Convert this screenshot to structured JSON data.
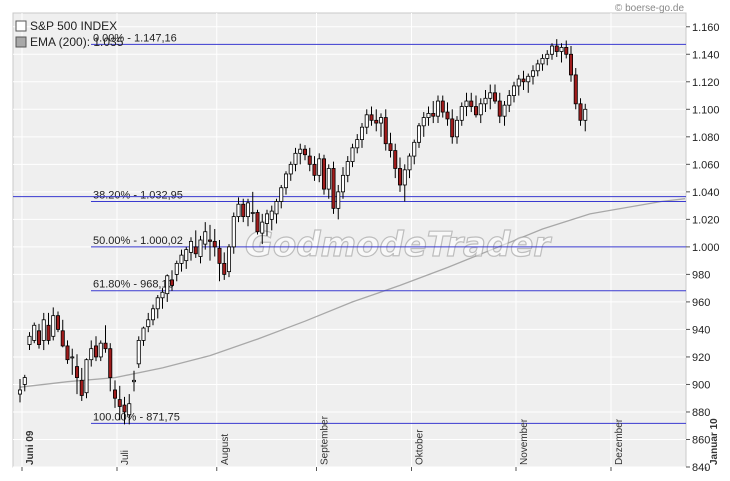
{
  "chart_data": {
    "type": "candlestick",
    "title": "",
    "ylim": [
      840,
      1170
    ],
    "y_ticks": [
      840,
      860,
      880,
      900,
      920,
      940,
      960,
      980,
      1000,
      1020,
      1040,
      1060,
      1080,
      1100,
      1120,
      1140,
      1160
    ],
    "y_tick_labels": [
      "840",
      "860",
      "880",
      "900",
      "920",
      "940",
      "960",
      "980",
      "1.000",
      "1.020",
      "1.040",
      "1.060",
      "1.080",
      "1.100",
      "1.120",
      "1.140",
      "1.160"
    ],
    "months": [
      {
        "label": "Juni 09",
        "bold": true,
        "index": 0
      },
      {
        "label": "Juli",
        "bold": false,
        "index": 20
      },
      {
        "label": "August",
        "bold": false,
        "index": 41
      },
      {
        "label": "September",
        "bold": false,
        "index": 62
      },
      {
        "label": "Oktober",
        "bold": false,
        "index": 82
      },
      {
        "label": "November",
        "bold": false,
        "index": 104
      },
      {
        "label": "Dezember",
        "bold": false,
        "index": 124
      },
      {
        "label": "Januar 10",
        "bold": true,
        "index": 144
      }
    ],
    "series": [
      {
        "name": "S&P 500 INDEX",
        "type": "candlestick"
      },
      {
        "name": "EMA (200): 1.035",
        "type": "line"
      }
    ],
    "fibonacci": [
      {
        "label": "0.00% - 1.147,16",
        "value": 1147.16
      },
      {
        "label": "38.20% - 1.032,95",
        "value": 1032.95
      },
      {
        "label": "50.00% - 1.000,02",
        "value": 1000.02
      },
      {
        "label": "61.80% - 968,13",
        "value": 968.13
      },
      {
        "label": "100.00% - 871,75",
        "value": 871.75
      }
    ],
    "extra_level": 1036.5,
    "ohlc": [
      [
        893,
        904,
        887,
        896
      ],
      [
        900,
        907,
        895,
        905
      ],
      [
        929,
        938,
        925,
        935
      ],
      [
        932,
        945,
        930,
        943
      ],
      [
        939,
        944,
        926,
        929
      ],
      [
        932,
        952,
        925,
        947
      ],
      [
        943,
        952,
        929,
        932
      ],
      [
        935,
        956,
        932,
        950
      ],
      [
        950,
        953,
        938,
        940
      ],
      [
        939,
        947,
        927,
        928
      ],
      [
        928,
        932,
        915,
        918
      ],
      [
        920,
        926,
        907,
        920
      ],
      [
        913,
        922,
        893,
        905
      ],
      [
        903,
        912,
        888,
        892
      ],
      [
        894,
        919,
        890,
        918
      ],
      [
        918,
        932,
        913,
        926
      ],
      [
        928,
        935,
        917,
        920
      ],
      [
        920,
        932,
        917,
        930
      ],
      [
        930,
        943,
        923,
        926
      ],
      [
        926,
        930,
        895,
        905
      ],
      [
        896,
        903,
        883,
        890
      ],
      [
        889,
        899,
        874,
        884
      ],
      [
        885,
        891,
        871,
        880
      ],
      [
        878,
        893,
        871,
        886
      ],
      [
        902,
        910,
        895,
        903
      ],
      [
        915,
        935,
        912,
        932
      ],
      [
        932,
        942,
        928,
        941
      ],
      [
        942,
        952,
        938,
        947
      ],
      [
        947,
        958,
        943,
        955
      ],
      [
        955,
        965,
        948,
        963
      ],
      [
        963,
        970,
        955,
        967
      ],
      [
        966,
        980,
        960,
        979
      ],
      [
        976,
        983,
        968,
        972
      ],
      [
        980,
        990,
        975,
        988
      ],
      [
        988,
        998,
        982,
        994
      ],
      [
        990,
        1000,
        984,
        998
      ],
      [
        996,
        1007,
        990,
        1004
      ],
      [
        1000,
        1012,
        992,
        995
      ],
      [
        993,
        1008,
        988,
        1005
      ],
      [
        1002,
        1018,
        998,
        1011
      ],
      [
        1005,
        1016,
        990,
        1004
      ],
      [
        1004,
        1013,
        993,
        1000
      ],
      [
        999,
        1005,
        975,
        988
      ],
      [
        988,
        996,
        976,
        980
      ],
      [
        982,
        1002,
        978,
        1000
      ],
      [
        1000,
        1025,
        995,
        1022
      ],
      [
        1022,
        1036,
        1018,
        1031
      ],
      [
        1031,
        1035,
        1018,
        1022
      ],
      [
        1022,
        1035,
        1015,
        1032
      ],
      [
        1025,
        1040,
        1018,
        1025
      ],
      [
        1025,
        1027,
        1009,
        1011
      ],
      [
        1010,
        1024,
        1002,
        1018
      ],
      [
        1017,
        1027,
        1008,
        1024
      ],
      [
        1020,
        1030,
        1012,
        1026
      ],
      [
        1024,
        1035,
        1017,
        1033
      ],
      [
        1033,
        1045,
        1028,
        1043
      ],
      [
        1043,
        1055,
        1038,
        1053
      ],
      [
        1053,
        1062,
        1048,
        1060
      ],
      [
        1060,
        1072,
        1055,
        1068
      ],
      [
        1068,
        1075,
        1060,
        1071
      ],
      [
        1071,
        1074,
        1063,
        1067
      ],
      [
        1066,
        1072,
        1055,
        1060
      ],
      [
        1060,
        1066,
        1048,
        1052
      ],
      [
        1052,
        1068,
        1047,
        1064
      ],
      [
        1064,
        1067,
        1038,
        1042
      ],
      [
        1042,
        1060,
        1035,
        1057
      ],
      [
        1057,
        1062,
        1024,
        1028
      ],
      [
        1028,
        1045,
        1020,
        1040
      ],
      [
        1040,
        1058,
        1035,
        1052
      ],
      [
        1052,
        1066,
        1047,
        1062
      ],
      [
        1062,
        1075,
        1058,
        1072
      ],
      [
        1072,
        1082,
        1068,
        1078
      ],
      [
        1078,
        1090,
        1072,
        1087
      ],
      [
        1087,
        1100,
        1082,
        1096
      ],
      [
        1096,
        1102,
        1088,
        1092
      ],
      [
        1092,
        1100,
        1084,
        1090
      ],
      [
        1090,
        1097,
        1080,
        1094
      ],
      [
        1094,
        1100,
        1070,
        1075
      ],
      [
        1075,
        1083,
        1065,
        1070
      ],
      [
        1070,
        1075,
        1050,
        1057
      ],
      [
        1057,
        1065,
        1040,
        1045
      ],
      [
        1045,
        1060,
        1033,
        1056
      ],
      [
        1056,
        1068,
        1050,
        1066
      ],
      [
        1066,
        1078,
        1060,
        1076
      ],
      [
        1076,
        1090,
        1072,
        1088
      ],
      [
        1088,
        1098,
        1080,
        1094
      ],
      [
        1094,
        1102,
        1088,
        1097
      ],
      [
        1097,
        1106,
        1090,
        1095
      ],
      [
        1095,
        1110,
        1090,
        1106
      ],
      [
        1106,
        1110,
        1094,
        1098
      ],
      [
        1098,
        1105,
        1088,
        1093
      ],
      [
        1093,
        1100,
        1075,
        1080
      ],
      [
        1080,
        1095,
        1075,
        1092
      ],
      [
        1092,
        1105,
        1088,
        1102
      ],
      [
        1102,
        1112,
        1095,
        1106
      ],
      [
        1106,
        1112,
        1098,
        1102
      ],
      [
        1102,
        1110,
        1094,
        1096
      ],
      [
        1096,
        1108,
        1090,
        1104
      ],
      [
        1104,
        1114,
        1098,
        1108
      ],
      [
        1108,
        1118,
        1100,
        1112
      ],
      [
        1112,
        1118,
        1104,
        1106
      ],
      [
        1106,
        1112,
        1090,
        1095
      ],
      [
        1095,
        1106,
        1088,
        1103
      ],
      [
        1103,
        1114,
        1098,
        1110
      ],
      [
        1110,
        1120,
        1105,
        1117
      ],
      [
        1117,
        1125,
        1110,
        1122
      ],
      [
        1122,
        1128,
        1114,
        1120
      ],
      [
        1120,
        1126,
        1112,
        1124
      ],
      [
        1124,
        1132,
        1118,
        1128
      ],
      [
        1128,
        1136,
        1124,
        1133
      ],
      [
        1133,
        1140,
        1128,
        1137
      ],
      [
        1137,
        1143,
        1132,
        1140
      ],
      [
        1140,
        1148,
        1136,
        1146
      ],
      [
        1146,
        1151,
        1138,
        1142
      ],
      [
        1142,
        1148,
        1134,
        1145
      ],
      [
        1145,
        1150,
        1137,
        1140
      ],
      [
        1140,
        1146,
        1120,
        1125
      ],
      [
        1125,
        1130,
        1100,
        1104
      ],
      [
        1104,
        1108,
        1088,
        1092
      ],
      [
        1092,
        1104,
        1084,
        1100
      ]
    ],
    "ema": [
      [
        0,
        898
      ],
      [
        10,
        902
      ],
      [
        20,
        905
      ],
      [
        30,
        912
      ],
      [
        40,
        921
      ],
      [
        50,
        933
      ],
      [
        60,
        946
      ],
      [
        70,
        960
      ],
      [
        80,
        972
      ],
      [
        90,
        985
      ],
      [
        100,
        999
      ],
      [
        110,
        1013
      ],
      [
        120,
        1024
      ],
      [
        130,
        1030
      ],
      [
        135,
        1033
      ],
      [
        140,
        1035
      ]
    ]
  },
  "legend": {
    "items": [
      {
        "name": "S&P 500 INDEX",
        "color": "#ffffff"
      },
      {
        "name": "EMA (200): 1.035",
        "color": "#a8a8a8"
      }
    ]
  },
  "watermark": "GodmodeTrader",
  "copyright": "© boerse-go.de",
  "colors": {
    "plot_bg": "#efefef",
    "grid": "#ffffff",
    "fib_line": "#3a3ad0",
    "candle_up": "#ffffff",
    "candle_down": "#a01c1c",
    "wick": "#000000",
    "ema": "#a8a8a8"
  }
}
